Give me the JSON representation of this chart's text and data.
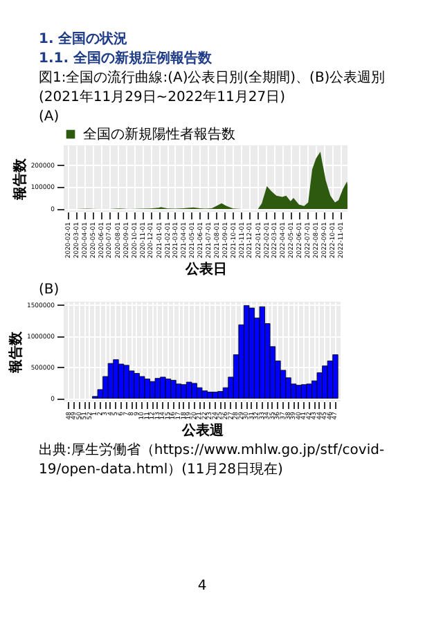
{
  "chart_data": [
    {
      "type": "area",
      "annotations": [
        "1. 全国の状況",
        "1.1. 全国の新規症例報告数",
        "図1:全国の流行曲線:(A)公表日別(全期間)、(B)公表週別(2021年11月29日~2022年11月27日)",
        "(A)"
      ],
      "xlabel": "公表日",
      "ylabel": "報告数",
      "legend": "top",
      "grid": true,
      "xlim": [
        "2020-01-16",
        "2022-11-27"
      ],
      "ylim": [
        -13000,
        290000
      ],
      "yticks": [
        0,
        100000,
        200000
      ],
      "xticks": [
        "2020-02-01",
        "2020-03-01",
        "2020-04-01",
        "2020-05-01",
        "2020-06-01",
        "2020-07-01",
        "2020-08-01",
        "2020-09-01",
        "2020-10-01",
        "2020-11-01",
        "2020-12-01",
        "2021-01-01",
        "2021-02-01",
        "2021-03-01",
        "2021-04-01",
        "2021-05-01",
        "2021-06-01",
        "2021-07-01",
        "2021-08-01",
        "2021-09-01",
        "2021-10-01",
        "2021-11-01",
        "2021-12-01",
        "2022-01-01",
        "2022-02-01",
        "2022-03-01",
        "2022-04-01",
        "2022-05-01",
        "2022-06-01",
        "2022-07-01",
        "2022-08-01",
        "2022-09-01",
        "2022-10-01",
        "2022-11-01"
      ],
      "series": [
        {
          "name": "全国の新規陽性者報告数",
          "color": "#2d5a0e",
          "x": [
            "2020-01-16",
            "2020-03-01",
            "2020-04-11",
            "2020-05-20",
            "2020-07-01",
            "2020-08-07",
            "2020-09-15",
            "2020-11-01",
            "2020-12-01",
            "2020-12-31",
            "2021-01-08",
            "2021-02-01",
            "2021-03-01",
            "2021-04-01",
            "2021-05-08",
            "2021-06-01",
            "2021-06-20",
            "2021-07-15",
            "2021-08-20",
            "2021-09-05",
            "2021-10-01",
            "2021-11-01",
            "2021-12-15",
            "2022-01-01",
            "2022-01-15",
            "2022-02-03",
            "2022-02-20",
            "2022-03-10",
            "2022-04-01",
            "2022-04-15",
            "2022-05-01",
            "2022-05-12",
            "2022-06-01",
            "2022-06-20",
            "2022-07-05",
            "2022-07-20",
            "2022-08-03",
            "2022-08-19",
            "2022-08-25",
            "2022-09-08",
            "2022-09-25",
            "2022-10-12",
            "2022-10-25",
            "2022-11-10",
            "2022-11-25",
            "2022-11-27"
          ],
          "values": [
            0,
            0,
            1000,
            0,
            0,
            2000,
            0,
            1000,
            2000,
            5000,
            8000,
            2000,
            1000,
            3000,
            7000,
            3000,
            1000,
            3000,
            26000,
            15000,
            2000,
            0,
            0,
            0,
            25000,
            104000,
            80000,
            60000,
            55000,
            60000,
            35000,
            50000,
            20000,
            13000,
            30000,
            180000,
            230000,
            261000,
            220000,
            130000,
            60000,
            30000,
            40000,
            90000,
            125000,
            110000
          ]
        }
      ]
    },
    {
      "type": "bar",
      "title": "(B)",
      "annotations": [
        "出典:厚生労働省（https://www.mhlw.go.jp/stf/covid-19/open-data.html）(11月28日現在)",
        "4"
      ],
      "xlabel": "公表週",
      "ylabel": "報告数",
      "grid": true,
      "color": "#0000ff",
      "ylim": [
        -50000,
        1550000
      ],
      "yticks": [
        0,
        500000,
        1000000,
        1500000
      ],
      "categories": [
        "48",
        "49",
        "50",
        "51",
        "52",
        "1",
        "2",
        "3",
        "4",
        "5",
        "6",
        "7",
        "8",
        "9",
        "10",
        "11",
        "12",
        "13",
        "14",
        "15",
        "16",
        "17",
        "18",
        "19",
        "20",
        "21",
        "22",
        "23",
        "24",
        "25",
        "26",
        "27",
        "28",
        "29",
        "30",
        "31",
        "32",
        "33",
        "34",
        "35",
        "36",
        "37",
        "38",
        "39",
        "40",
        "41",
        "42",
        "43",
        "44",
        "45",
        "46",
        "47"
      ],
      "values": [
        0,
        0,
        0,
        0,
        0,
        30000,
        140000,
        350000,
        560000,
        620000,
        550000,
        530000,
        440000,
        400000,
        350000,
        310000,
        270000,
        320000,
        340000,
        310000,
        290000,
        230000,
        220000,
        260000,
        240000,
        170000,
        120000,
        100000,
        100000,
        110000,
        170000,
        340000,
        700000,
        1180000,
        1490000,
        1450000,
        1290000,
        1470000,
        1200000,
        830000,
        600000,
        450000,
        330000,
        230000,
        210000,
        220000,
        230000,
        280000,
        410000,
        520000,
        600000,
        700000
      ]
    }
  ]
}
